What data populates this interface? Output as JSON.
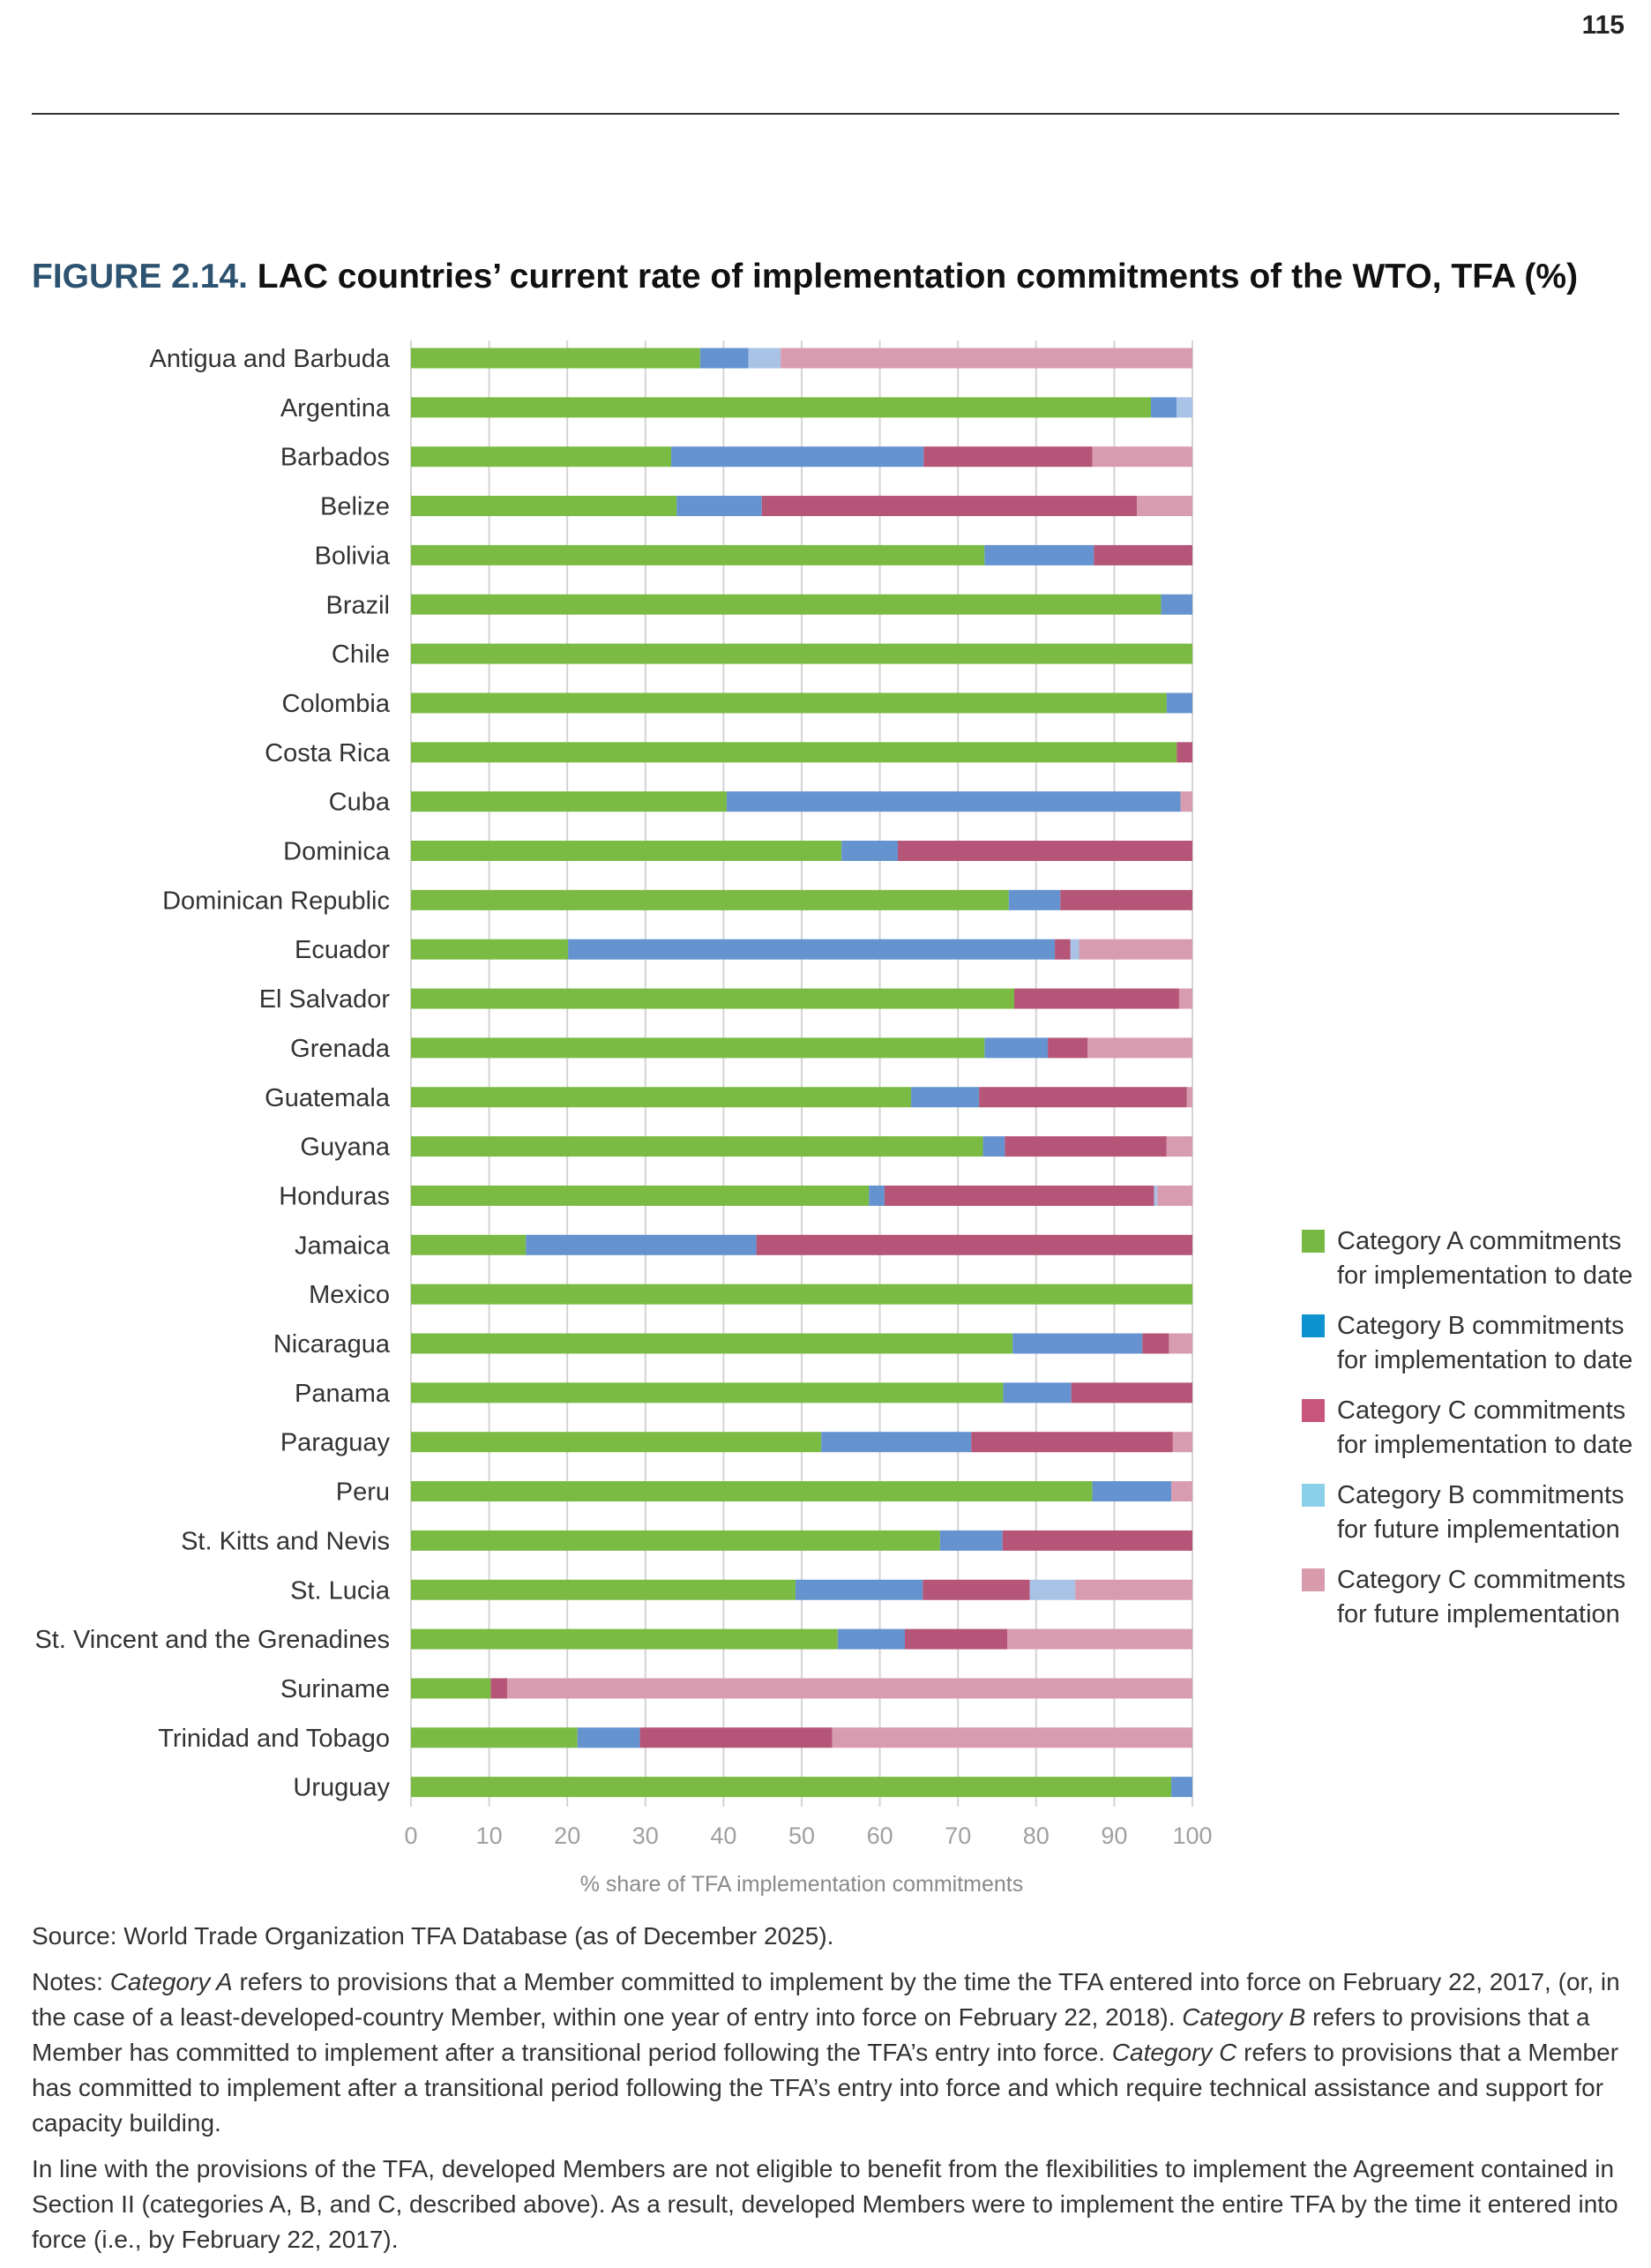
{
  "page": {
    "number": "115"
  },
  "figure": {
    "number": "FIGURE 2.14.",
    "title": "LAC countries’ current rate of implementation commitments of the WTO, TFA (%)"
  },
  "chart_data": {
    "type": "bar",
    "orientation": "horizontal",
    "stacked": true,
    "xlabel": "% share of TFA implementation commitments",
    "xlim": [
      0,
      100
    ],
    "xticks": [
      0,
      10,
      20,
      30,
      40,
      50,
      60,
      70,
      80,
      90,
      100
    ],
    "grid": true,
    "legend_position": "right",
    "categories": [
      "Antigua and Barbuda",
      "Argentina",
      "Barbados",
      "Belize",
      "Bolivia",
      "Brazil",
      "Chile",
      "Colombia",
      "Costa Rica",
      "Cuba",
      "Dominica",
      "Dominican Republic",
      "Ecuador",
      "El Salvador",
      "Grenada",
      "Guatemala",
      "Guyana",
      "Honduras",
      "Jamaica",
      "Mexico",
      "Nicaragua",
      "Panama",
      "Paraguay",
      "Peru",
      "St. Kitts and Nevis",
      "St. Lucia",
      "St. Vincent and the Grenadines",
      "Suriname",
      "Trinidad and Tobago",
      "Uruguay"
    ],
    "series": [
      {
        "name": "Category A commitments for implementation to date",
        "legend_color": "#76b843",
        "bar_color": "#7bbb44",
        "values": [
          37,
          94.7,
          33.3,
          34.0,
          73.4,
          96.0,
          100,
          96.7,
          98.0,
          40.4,
          55.1,
          76.5,
          20.1,
          77.2,
          73.4,
          64.0,
          73.2,
          58.6,
          14.7,
          100,
          77.0,
          75.8,
          52.5,
          87.2,
          67.7,
          49.2,
          54.6,
          10.2,
          21.3,
          97.3
        ]
      },
      {
        "name": "Category B commitments for implementation to date",
        "legend_color": "#0f92d0",
        "bar_color": "#6593d0",
        "values": [
          6.2,
          3.3,
          32.3,
          10.9,
          14.0,
          4.0,
          0,
          3.3,
          0,
          58.1,
          7.2,
          6.6,
          62.3,
          0,
          8.1,
          8.7,
          2.8,
          2.0,
          29.5,
          0,
          16.6,
          8.7,
          19.2,
          10.1,
          8.0,
          16.3,
          8.6,
          0,
          8.0,
          2.7
        ]
      },
      {
        "name": "Category C commitments for implementation to date",
        "legend_color": "#c8557c",
        "bar_color": "#b55577",
        "values": [
          0,
          0,
          21.6,
          48.0,
          12.6,
          0,
          0,
          0,
          2.0,
          0,
          37.7,
          16.9,
          2.0,
          21.1,
          5.1,
          26.6,
          20.7,
          34.5,
          55.8,
          0,
          3.4,
          15.5,
          25.8,
          0,
          24.3,
          13.7,
          13.1,
          2.1,
          24.6,
          0
        ]
      },
      {
        "name": "Category B commitments for future implementation",
        "legend_color": "#8ccfe8",
        "bar_color": "#a9c3e6",
        "values": [
          4.1,
          2.0,
          0,
          0,
          0,
          0,
          0,
          0,
          0,
          0,
          0,
          0,
          1.1,
          0,
          0,
          0,
          0,
          0.4,
          0,
          0,
          0,
          0,
          0,
          0,
          0,
          5.8,
          0,
          0,
          0,
          0
        ]
      },
      {
        "name": "Category C commitments for future implementation",
        "legend_color": "#d89aad",
        "bar_color": "#d89cb0",
        "values": [
          52.7,
          0,
          12.8,
          7.1,
          0,
          0,
          0,
          0,
          0,
          1.5,
          0,
          0,
          14.5,
          1.7,
          13.4,
          0.7,
          3.3,
          4.5,
          0,
          0,
          3.0,
          0,
          2.5,
          2.7,
          0,
          15.0,
          23.7,
          87.7,
          46.1,
          0
        ]
      }
    ]
  },
  "source": "Source: World Trade Organization TFA Database (as of December 2025).",
  "notes": {
    "p1": [
      {
        "text": "Notes: ",
        "italic": false
      },
      {
        "text": "Category A",
        "italic": true
      },
      {
        "text": " refers to provisions that a Member committed to implement by the time the TFA entered into force on February 22, 2017, (or, in the case of a least-developed-country Member, within one year of entry into force on February 22, 2018). ",
        "italic": false
      },
      {
        "text": "Category B",
        "italic": true
      },
      {
        "text": " refers to provisions that a Member has committed to implement after a transitional period following the TFA’s entry into force. ",
        "italic": false
      },
      {
        "text": "Category C",
        "italic": true
      },
      {
        "text": " refers to provisions that a Member has committed to implement after a transitional period following the TFA’s entry into force and which require technical assistance and support for capacity building.",
        "italic": false
      }
    ],
    "p2": "In line with the provisions of the TFA, developed Members are not eligible to benefit from the flexibilities to implement the Agreement contained in Section II (categories A, B, and C, described above). As a result, developed Members were to implement the entire TFA by the time it entered into force (i.e., by February 22, 2017)."
  }
}
